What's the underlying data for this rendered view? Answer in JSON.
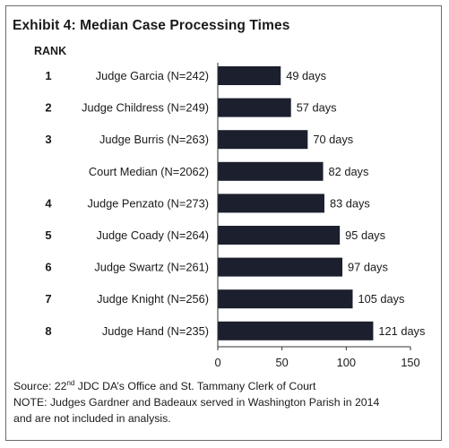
{
  "chart_data": {
    "type": "bar",
    "orientation": "horizontal",
    "title": "Exhibit 4: Median Case Processing Times",
    "rank_header": "RANK",
    "ranks": [
      "1",
      "2",
      "3",
      "",
      "4",
      "5",
      "6",
      "7",
      "8"
    ],
    "categories": [
      "Judge Garcia (N=242)",
      "Judge Childress (N=249)",
      "Judge Burris (N=263)",
      "Court Median (N=2062)",
      "Judge Penzato (N=273)",
      "Judge Coady (N=264)",
      "Judge Swartz (N=261)",
      "Judge Knight (N=256)",
      "Judge Hand (N=235)"
    ],
    "values": [
      49,
      57,
      70,
      82,
      83,
      95,
      97,
      105,
      121
    ],
    "data_labels": [
      "49 days",
      "57 days",
      "70 days",
      "82 days",
      "83 days",
      "95 days",
      "97 days",
      "105 days",
      "121 days"
    ],
    "xlim": [
      0,
      150
    ],
    "xticks": [
      "0",
      "50",
      "100",
      "150"
    ],
    "xlabel": "",
    "ylabel": "",
    "grid": false,
    "bar_color": "#1b1f2e"
  },
  "footnote": {
    "source_prefix": "Source: 22",
    "source_sup": "nd",
    "source_suffix": " JDC DA’s Office and St. Tammany Clerk of Court",
    "note_line1": "NOTE: Judges Gardner and Badeaux served in Washington Parish in 2014",
    "note_line2": "and are not included in analysis."
  }
}
